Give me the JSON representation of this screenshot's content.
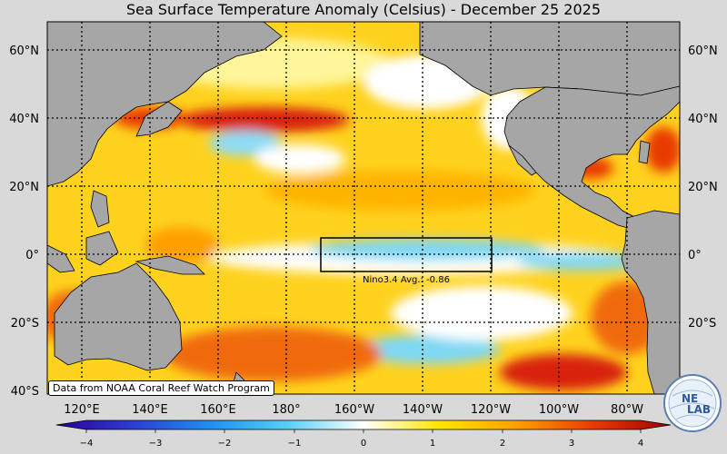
{
  "title": "Sea Surface Temperature Anomaly (Celsius) - December 25 2025",
  "lat_labels": [
    "60°N",
    "40°N",
    "20°N",
    "0°",
    "20°S",
    "40°S"
  ],
  "lon_labels": [
    "120°E",
    "140°E",
    "160°E",
    "180°",
    "160°W",
    "140°W",
    "120°W",
    "100°W",
    "80°W"
  ],
  "nino_box_label": "Nino3.4 Avg.: -0.86",
  "source_label": "Data from NOAA Coral Reef Watch Program",
  "logo_text_1": "NE",
  "logo_text_2": "LAB",
  "colorbar": {
    "ticks": [
      "−4",
      "−3",
      "−2",
      "−1",
      "0",
      "1",
      "2",
      "3",
      "4"
    ],
    "colors": [
      "#2b0096",
      "#2c3dd4",
      "#1f8ff0",
      "#56cff6",
      "#ffffff",
      "#ffe600",
      "#ff9f00",
      "#e83a00",
      "#9e0000"
    ]
  },
  "colors": {
    "land": "#a6a6a6",
    "ocean_warm": "#ffd21e",
    "ocean_hot": "#f06a10",
    "ocean_cool": "#7fd8f4",
    "background": "#d9d9d9"
  }
}
